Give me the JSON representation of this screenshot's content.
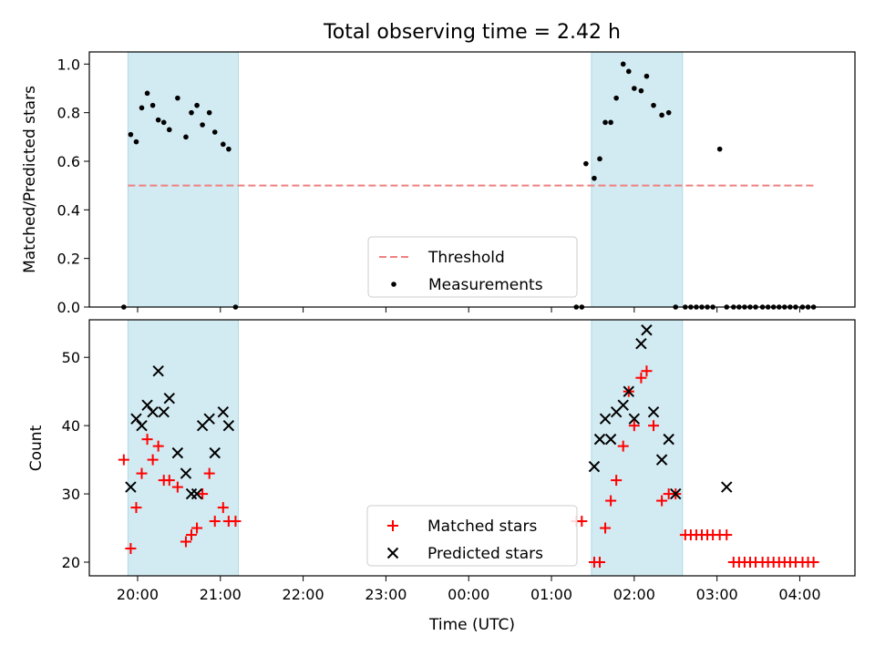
{
  "title": "Total observing time = 2.42 h",
  "colors": {
    "shade": "#add8e6",
    "threshold": "#f08080",
    "matched": "#ff0000",
    "predicted": "#000000",
    "measurements": "#000000"
  },
  "chart_data": [
    {
      "type": "scatter",
      "ylabel": "Matched/Predicted stars",
      "ylim": [
        0,
        1.05
      ],
      "yticks": [
        0,
        0.2,
        0.4,
        0.6,
        0.8,
        1.0
      ],
      "ytick_labels": [
        "0.0",
        "0.2",
        "0.4",
        "0.6",
        "0.8",
        "1.0"
      ],
      "xlim": [
        "19:25",
        "04:40"
      ],
      "grid": false,
      "legend": "lower-center",
      "shaded_intervals": [
        [
          "19:53",
          "21:13"
        ],
        [
          "01:29",
          "02:35"
        ]
      ],
      "series": [
        {
          "name": "Threshold",
          "kind": "dashed-line",
          "x": [
            "19:53",
            "04:10"
          ],
          "y": [
            0.5,
            0.5
          ]
        },
        {
          "name": "Measurements",
          "kind": "dots",
          "x": [
            "19:50",
            "19:55",
            "19:59",
            "20:03",
            "20:07",
            "20:11",
            "20:15",
            "20:19",
            "20:23",
            "20:29",
            "20:35",
            "20:39",
            "20:43",
            "20:47",
            "20:52",
            "20:56",
            "21:02",
            "21:06",
            "21:11",
            "01:18",
            "01:22",
            "01:25",
            "01:31",
            "01:35",
            "01:39",
            "01:43",
            "01:47",
            "01:52",
            "01:56",
            "02:00",
            "02:05",
            "02:09",
            "02:14",
            "02:20",
            "02:25",
            "02:30",
            "02:37",
            "02:41",
            "02:45",
            "02:49",
            "02:53",
            "02:57",
            "03:02",
            "03:07",
            "03:12",
            "03:16",
            "03:20",
            "03:24",
            "03:28",
            "03:33",
            "03:37",
            "03:41",
            "03:45",
            "03:49",
            "03:53",
            "03:57",
            "04:02",
            "04:06",
            "04:10"
          ],
          "y": [
            0.0,
            0.71,
            0.68,
            0.82,
            0.88,
            0.83,
            0.77,
            0.76,
            0.73,
            0.86,
            0.7,
            0.8,
            0.83,
            0.75,
            0.8,
            0.72,
            0.67,
            0.65,
            0.0,
            0.0,
            0.0,
            0.59,
            0.53,
            0.61,
            0.76,
            0.76,
            0.86,
            1.0,
            0.97,
            0.9,
            0.89,
            0.95,
            0.83,
            0.79,
            0.8,
            0.0,
            0.0,
            0.0,
            0.0,
            0.0,
            0.0,
            0.0,
            0.65,
            0.0,
            0.0,
            0.0,
            0.0,
            0.0,
            0.0,
            0.0,
            0.0,
            0.0,
            0.0,
            0.0,
            0.0,
            0.0,
            0.0,
            0.0,
            0.0
          ]
        }
      ]
    },
    {
      "type": "scatter",
      "xlabel": "Time (UTC)",
      "ylabel": "Count",
      "ylim": [
        18,
        55.5
      ],
      "yticks": [
        20,
        30,
        40,
        50
      ],
      "xlim": [
        "19:25",
        "04:40"
      ],
      "xticks": [
        "20:00",
        "21:00",
        "22:00",
        "23:00",
        "00:00",
        "01:00",
        "02:00",
        "03:00",
        "04:00"
      ],
      "grid": false,
      "legend": "lower-center",
      "shaded_intervals": [
        [
          "19:53",
          "21:13"
        ],
        [
          "01:29",
          "02:35"
        ]
      ],
      "series": [
        {
          "name": "Matched stars",
          "marker": "plus",
          "x": [
            "19:50",
            "19:55",
            "19:59",
            "20:03",
            "20:07",
            "20:11",
            "20:15",
            "20:19",
            "20:23",
            "20:29",
            "20:35",
            "20:39",
            "20:43",
            "20:47",
            "20:52",
            "20:56",
            "21:02",
            "21:06",
            "21:11",
            "01:18",
            "01:22",
            "01:31",
            "01:35",
            "01:39",
            "01:43",
            "01:47",
            "01:52",
            "01:56",
            "02:00",
            "02:05",
            "02:09",
            "02:14",
            "02:20",
            "02:25",
            "02:30",
            "02:37",
            "02:41",
            "02:45",
            "02:49",
            "02:53",
            "02:57",
            "03:02",
            "03:07",
            "03:12",
            "03:16",
            "03:20",
            "03:24",
            "03:28",
            "03:33",
            "03:37",
            "03:41",
            "03:45",
            "03:49",
            "03:53",
            "03:57",
            "04:02",
            "04:06",
            "04:10"
          ],
          "y": [
            35,
            22,
            28,
            33,
            38,
            35,
            37,
            32,
            32,
            31,
            23,
            24,
            25,
            30,
            33,
            26,
            28,
            26,
            26,
            26,
            26,
            20,
            20,
            25,
            29,
            32,
            37,
            45,
            40,
            47,
            48,
            40,
            29,
            30,
            30,
            24,
            24,
            24,
            24,
            24,
            24,
            24,
            24,
            20,
            20,
            20,
            20,
            20,
            20,
            20,
            20,
            20,
            20,
            20,
            20,
            20,
            20,
            20
          ]
        },
        {
          "name": "Predicted stars",
          "marker": "x",
          "x": [
            "19:55",
            "19:59",
            "20:03",
            "20:07",
            "20:11",
            "20:15",
            "20:19",
            "20:23",
            "20:29",
            "20:35",
            "20:39",
            "20:43",
            "20:47",
            "20:52",
            "20:56",
            "21:02",
            "21:06",
            "01:31",
            "01:35",
            "01:39",
            "01:43",
            "01:47",
            "01:52",
            "01:56",
            "02:00",
            "02:05",
            "02:09",
            "02:14",
            "02:20",
            "02:25",
            "02:30",
            "03:07"
          ],
          "y": [
            31,
            41,
            40,
            43,
            42,
            48,
            42,
            44,
            36,
            33,
            30,
            30,
            40,
            41,
            36,
            42,
            40,
            34,
            38,
            41,
            38,
            42,
            43,
            45,
            41,
            52,
            54,
            42,
            35,
            38,
            30,
            31
          ]
        }
      ]
    }
  ]
}
